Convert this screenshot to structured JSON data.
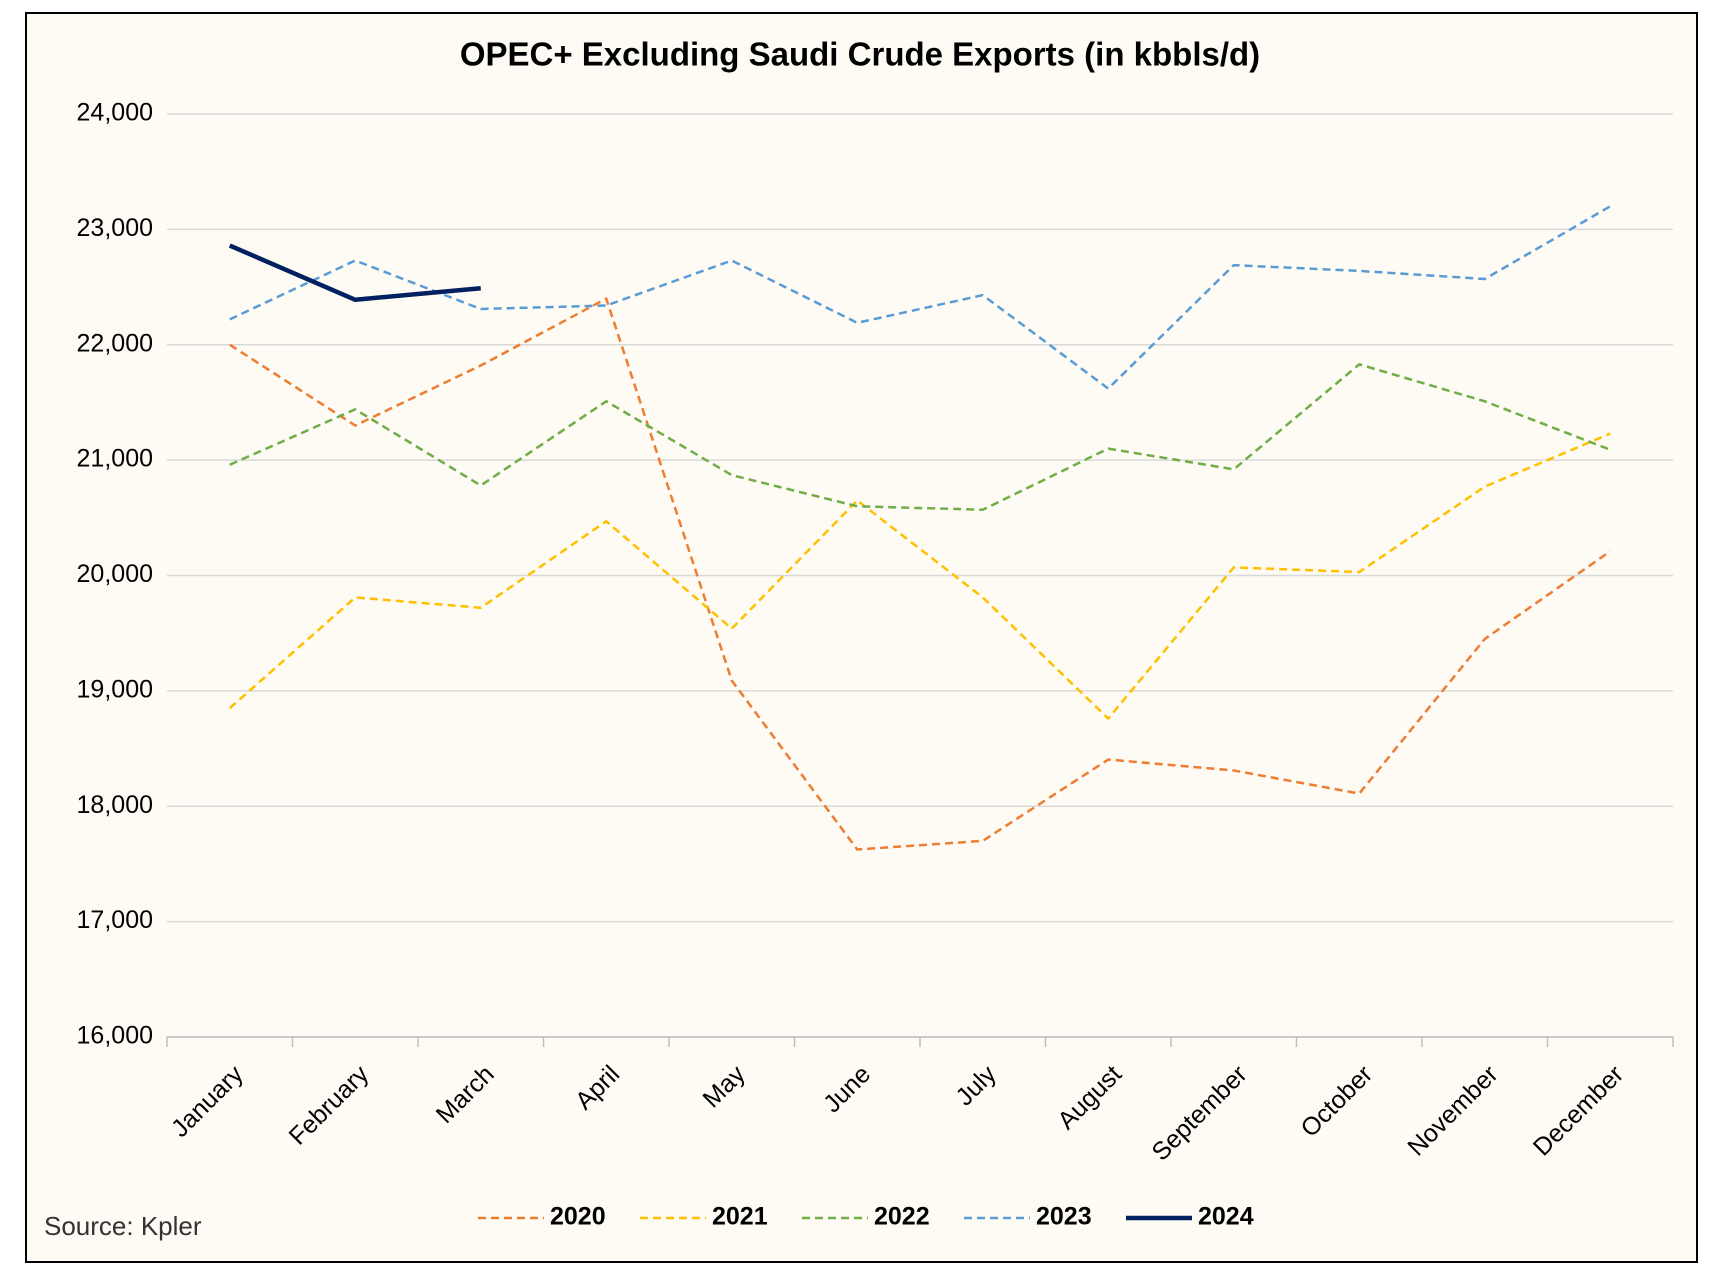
{
  "chart_data": {
    "type": "line",
    "title": "OPEC+ Excluding Saudi Crude Exports (in kbbls/d)",
    "source": "Source: Kpler",
    "categories": [
      "January",
      "February",
      "March",
      "April",
      "May",
      "June",
      "July",
      "August",
      "September",
      "October",
      "November",
      "December"
    ],
    "series": [
      {
        "name": "2020",
        "color": "#ed7d31",
        "dashed": true,
        "values": [
          22000,
          21300,
          21820,
          22400,
          19090,
          17625,
          17700,
          18405,
          18310,
          18110,
          19450,
          20210
        ]
      },
      {
        "name": "2021",
        "color": "#ffc000",
        "dashed": true,
        "values": [
          18850,
          19810,
          19720,
          20470,
          19540,
          20650,
          19810,
          18760,
          20070,
          20030,
          20770,
          21230
        ]
      },
      {
        "name": "2022",
        "color": "#70ad47",
        "dashed": true,
        "values": [
          20960,
          21440,
          20780,
          21510,
          20870,
          20600,
          20570,
          21100,
          20920,
          21830,
          21510,
          21090
        ]
      },
      {
        "name": "2023",
        "color": "#5b9bd5",
        "dashed": true,
        "values": [
          22220,
          22730,
          22310,
          22340,
          22730,
          22190,
          22430,
          21620,
          22690,
          22640,
          22570,
          23200
        ]
      },
      {
        "name": "2024",
        "color": "#002060",
        "dashed": false,
        "values": [
          22860,
          22390,
          22490,
          null,
          null,
          null,
          null,
          null,
          null,
          null,
          null,
          null
        ]
      }
    ],
    "ylim": [
      16000,
      24000
    ],
    "yticks": [
      {
        "value": 16000,
        "label": "16,000"
      },
      {
        "value": 17000,
        "label": "17,000"
      },
      {
        "value": 18000,
        "label": "18,000"
      },
      {
        "value": 19000,
        "label": "19,000"
      },
      {
        "value": 20000,
        "label": "20,000"
      },
      {
        "value": 21000,
        "label": "21,000"
      },
      {
        "value": 22000,
        "label": "22,000"
      },
      {
        "value": 23000,
        "label": "23,000"
      },
      {
        "value": 24000,
        "label": "24,000"
      }
    ],
    "grid": true,
    "legend": "bottom"
  }
}
